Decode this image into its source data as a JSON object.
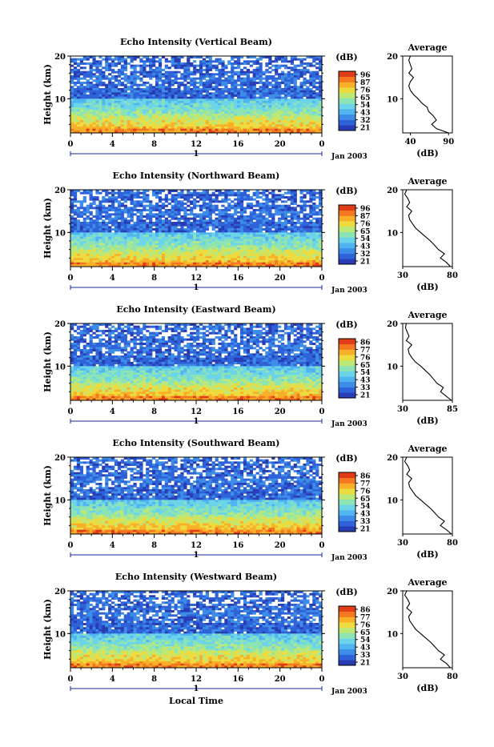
{
  "colormap": [
    "#283cb4",
    "#2e62d8",
    "#3c8ce8",
    "#50b4f0",
    "#6cd4e8",
    "#8ce4b4",
    "#bce878",
    "#ecdc40",
    "#f8b028",
    "#f47820",
    "#e03c18"
  ],
  "chart_data": [
    {
      "type": "heatmap",
      "title": "Echo Intensity (Vertical Beam)",
      "ylabel": "Height (km)",
      "yticks": [
        "20",
        "10"
      ],
      "ylim": [
        2,
        20
      ],
      "xticks": [
        "0",
        "4",
        "8",
        "12",
        "16",
        "20",
        "0"
      ],
      "xlim": [
        0,
        24
      ],
      "date_marker": "1",
      "date_label": "Jan 2003",
      "colorbar_label": "(dB)",
      "colorbar_ticks": [
        "96",
        "87",
        "76",
        "65",
        "54",
        "43",
        "32",
        "21"
      ],
      "profile": {
        "title": "Average",
        "xlabel": "(dB)",
        "xticks": [
          "40",
          "90"
        ],
        "xlim": [
          30,
          95
        ],
        "yticks": [
          "20",
          "10"
        ],
        "height_km": [
          2,
          3,
          4,
          5,
          6,
          7,
          8,
          9,
          10,
          11,
          12,
          13,
          14,
          15,
          16,
          17,
          18,
          19,
          20
        ],
        "values_db": [
          90,
          74,
          68,
          74,
          70,
          64,
          62,
          55,
          50,
          44,
          40,
          38,
          40,
          44,
          38,
          42,
          40,
          38,
          40
        ]
      }
    },
    {
      "type": "heatmap",
      "title": "Echo Intensity (Northward Beam)",
      "ylabel": "Height (km)",
      "yticks": [
        "20",
        "10"
      ],
      "ylim": [
        2,
        20
      ],
      "xticks": [
        "0",
        "4",
        "8",
        "12",
        "16",
        "20",
        "0"
      ],
      "xlim": [
        0,
        24
      ],
      "date_marker": "1",
      "date_label": "Jan 2003",
      "colorbar_label": "(dB)",
      "colorbar_ticks": [
        "96",
        "87",
        "76",
        "65",
        "54",
        "43",
        "32",
        "21"
      ],
      "profile": {
        "title": "Average",
        "xlabel": "(dB)",
        "xticks": [
          "30",
          "80"
        ],
        "xlim": [
          30,
          80
        ],
        "yticks": [
          "20",
          "10"
        ],
        "height_km": [
          2,
          3,
          4,
          5,
          6,
          7,
          8,
          9,
          10,
          11,
          12,
          13,
          14,
          15,
          16,
          17,
          18,
          19,
          20
        ],
        "values_db": [
          78,
          74,
          68,
          72,
          66,
          62,
          58,
          53,
          48,
          43,
          40,
          37,
          36,
          39,
          34,
          37,
          35,
          32,
          34
        ]
      }
    },
    {
      "type": "heatmap",
      "title": "Echo Intensity (Eastward Beam)",
      "ylabel": "Height (km)",
      "yticks": [
        "20",
        "10"
      ],
      "ylim": [
        2,
        20
      ],
      "xticks": [
        "0",
        "4",
        "8",
        "12",
        "16",
        "20",
        "0"
      ],
      "xlim": [
        0,
        24
      ],
      "date_marker": "1",
      "date_label": "Jan 2003",
      "colorbar_label": "(dB)",
      "colorbar_ticks": [
        "86",
        "77",
        "76",
        "65",
        "54",
        "43",
        "33",
        "21"
      ],
      "profile": {
        "title": "Average",
        "xlabel": "(dB)",
        "xticks": [
          "30",
          "85"
        ],
        "xlim": [
          30,
          85
        ],
        "yticks": [
          "20",
          "10"
        ],
        "height_km": [
          2,
          3,
          4,
          5,
          6,
          7,
          8,
          9,
          10,
          11,
          12,
          13,
          14,
          15,
          16,
          17,
          18,
          19,
          20
        ],
        "values_db": [
          84,
          78,
          72,
          75,
          68,
          64,
          60,
          55,
          50,
          44,
          40,
          37,
          36,
          40,
          34,
          37,
          35,
          33,
          34
        ]
      }
    },
    {
      "type": "heatmap",
      "title": "Echo Intensity (Southward Beam)",
      "ylabel": "Height (km)",
      "yticks": [
        "20",
        "10"
      ],
      "ylim": [
        2,
        20
      ],
      "xticks": [
        "0",
        "4",
        "8",
        "12",
        "16",
        "20",
        "0"
      ],
      "xlim": [
        0,
        24
      ],
      "date_marker": "1",
      "date_label": "Jan 2003",
      "colorbar_label": "(dB)",
      "colorbar_ticks": [
        "86",
        "77",
        "76",
        "65",
        "54",
        "43",
        "33",
        "21"
      ],
      "profile": {
        "title": "Average",
        "xlabel": "(dB)",
        "xticks": [
          "30",
          "80"
        ],
        "xlim": [
          30,
          80
        ],
        "yticks": [
          "20",
          "10"
        ],
        "height_km": [
          2,
          3,
          4,
          5,
          6,
          7,
          8,
          9,
          10,
          11,
          12,
          13,
          14,
          15,
          16,
          17,
          18,
          19,
          20
        ],
        "values_db": [
          79,
          74,
          68,
          72,
          66,
          62,
          58,
          53,
          48,
          43,
          40,
          37,
          36,
          39,
          34,
          37,
          35,
          32,
          34
        ]
      }
    },
    {
      "type": "heatmap",
      "title": "Echo Intensity (Westward Beam)",
      "ylabel": "Height (km)",
      "yticks": [
        "20",
        "10"
      ],
      "ylim": [
        2,
        20
      ],
      "xticks": [
        "0",
        "4",
        "8",
        "12",
        "16",
        "20",
        "0"
      ],
      "xlim": [
        0,
        24
      ],
      "date_marker": "1",
      "date_label": "Jan 2003",
      "xlabel": "Local Time",
      "colorbar_label": "(dB)",
      "colorbar_ticks": [
        "86",
        "77",
        "76",
        "65",
        "54",
        "43",
        "33",
        "21"
      ],
      "profile": {
        "title": "Average",
        "xlabel": "(dB)",
        "xticks": [
          "30",
          "80"
        ],
        "xlim": [
          30,
          80
        ],
        "yticks": [
          "20",
          "10"
        ],
        "height_km": [
          2,
          3,
          4,
          5,
          6,
          7,
          8,
          9,
          10,
          11,
          12,
          13,
          14,
          15,
          16,
          17,
          18,
          19,
          20
        ],
        "values_db": [
          78,
          74,
          68,
          72,
          66,
          62,
          58,
          53,
          48,
          43,
          40,
          37,
          36,
          39,
          34,
          37,
          35,
          32,
          34
        ]
      }
    }
  ]
}
